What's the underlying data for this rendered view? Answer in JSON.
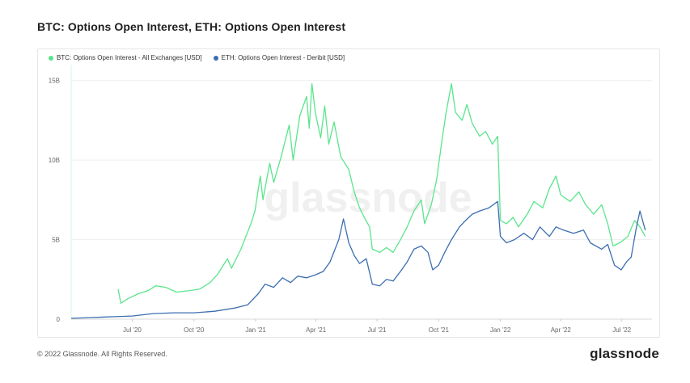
{
  "title": "BTC: Options Open Interest, ETH: Options Open Interest",
  "legend": {
    "btc": "BTC: Options Open Interest - All Exchanges [USD]",
    "eth": "ETH: Options Open Interest - Deribit [USD]"
  },
  "watermark": "glassnode",
  "footer": {
    "copyright": "© 2022 Glassnode. All Rights Reserved.",
    "brand": "glassnode"
  },
  "colors": {
    "btc": "#5ae58c",
    "eth": "#3b6eb0",
    "grid": "#eeeeee",
    "axis_text": "#666666"
  },
  "chart_data": {
    "type": "line",
    "xlim": [
      "2020-04-01",
      "2022-08-15"
    ],
    "ylim": [
      0,
      16
    ],
    "y_ticks": [
      {
        "value": 0,
        "label": "0"
      },
      {
        "value": 5,
        "label": "5B"
      },
      {
        "value": 10,
        "label": "10B"
      },
      {
        "value": 15,
        "label": "15B"
      }
    ],
    "x_ticks": [
      {
        "date": "2020-07-01",
        "label": "Jul '20"
      },
      {
        "date": "2020-10-01",
        "label": "Oct '20"
      },
      {
        "date": "2021-01-01",
        "label": "Jan '21"
      },
      {
        "date": "2021-04-01",
        "label": "Apr '21"
      },
      {
        "date": "2021-07-01",
        "label": "Jul '21"
      },
      {
        "date": "2021-10-01",
        "label": "Oct '21"
      },
      {
        "date": "2022-01-01",
        "label": "Jan '22"
      },
      {
        "date": "2022-04-01",
        "label": "Apr '22"
      },
      {
        "date": "2022-07-01",
        "label": "Jul '22"
      }
    ],
    "series": [
      {
        "name": "BTC: Options Open Interest - All Exchanges [USD]",
        "color": "#5ae58c",
        "points": [
          [
            "2020-06-10",
            1.9
          ],
          [
            "2020-06-14",
            1.0
          ],
          [
            "2020-06-25",
            1.3
          ],
          [
            "2020-07-10",
            1.6
          ],
          [
            "2020-07-25",
            1.8
          ],
          [
            "2020-08-05",
            2.1
          ],
          [
            "2020-08-20",
            2.0
          ],
          [
            "2020-09-05",
            1.7
          ],
          [
            "2020-09-25",
            1.8
          ],
          [
            "2020-10-10",
            1.9
          ],
          [
            "2020-10-25",
            2.3
          ],
          [
            "2020-11-05",
            2.8
          ],
          [
            "2020-11-20",
            3.8
          ],
          [
            "2020-11-26",
            3.2
          ],
          [
            "2020-12-10",
            4.4
          ],
          [
            "2020-12-25",
            6.0
          ],
          [
            "2020-12-31",
            6.8
          ],
          [
            "2021-01-08",
            9.0
          ],
          [
            "2021-01-12",
            7.5
          ],
          [
            "2021-01-22",
            9.8
          ],
          [
            "2021-01-28",
            8.6
          ],
          [
            "2021-02-08",
            10.2
          ],
          [
            "2021-02-20",
            12.2
          ],
          [
            "2021-02-26",
            10.0
          ],
          [
            "2021-03-08",
            12.8
          ],
          [
            "2021-03-18",
            14.0
          ],
          [
            "2021-03-22",
            12.0
          ],
          [
            "2021-03-26",
            14.8
          ],
          [
            "2021-03-31",
            13.0
          ],
          [
            "2021-04-08",
            11.4
          ],
          [
            "2021-04-14",
            13.4
          ],
          [
            "2021-04-20",
            11.0
          ],
          [
            "2021-04-28",
            12.4
          ],
          [
            "2021-05-08",
            10.2
          ],
          [
            "2021-05-20",
            9.4
          ],
          [
            "2021-05-28",
            8.0
          ],
          [
            "2021-06-05",
            7.0
          ],
          [
            "2021-06-12",
            6.4
          ],
          [
            "2021-06-20",
            5.8
          ],
          [
            "2021-06-24",
            4.4
          ],
          [
            "2021-07-05",
            4.2
          ],
          [
            "2021-07-15",
            4.5
          ],
          [
            "2021-07-25",
            4.2
          ],
          [
            "2021-08-05",
            5.0
          ],
          [
            "2021-08-15",
            5.8
          ],
          [
            "2021-08-25",
            6.8
          ],
          [
            "2021-09-05",
            7.5
          ],
          [
            "2021-09-10",
            6.0
          ],
          [
            "2021-09-20",
            7.2
          ],
          [
            "2021-09-28",
            8.8
          ],
          [
            "2021-10-05",
            11.0
          ],
          [
            "2021-10-12",
            13.0
          ],
          [
            "2021-10-20",
            14.8
          ],
          [
            "2021-10-26",
            13.0
          ],
          [
            "2021-11-05",
            12.5
          ],
          [
            "2021-11-12",
            13.5
          ],
          [
            "2021-11-20",
            12.3
          ],
          [
            "2021-12-01",
            11.5
          ],
          [
            "2021-12-10",
            11.8
          ],
          [
            "2021-12-20",
            11.0
          ],
          [
            "2021-12-28",
            11.5
          ],
          [
            "2022-01-01",
            6.2
          ],
          [
            "2022-01-10",
            6.0
          ],
          [
            "2022-01-20",
            6.4
          ],
          [
            "2022-01-28",
            5.8
          ],
          [
            "2022-02-10",
            6.6
          ],
          [
            "2022-02-20",
            7.4
          ],
          [
            "2022-03-05",
            7.0
          ],
          [
            "2022-03-15",
            8.2
          ],
          [
            "2022-03-25",
            9.0
          ],
          [
            "2022-04-01",
            7.8
          ],
          [
            "2022-04-15",
            7.4
          ],
          [
            "2022-04-28",
            8.0
          ],
          [
            "2022-05-08",
            7.2
          ],
          [
            "2022-05-20",
            6.6
          ],
          [
            "2022-06-01",
            7.2
          ],
          [
            "2022-06-10",
            6.0
          ],
          [
            "2022-06-18",
            4.6
          ],
          [
            "2022-06-28",
            4.8
          ],
          [
            "2022-07-10",
            5.2
          ],
          [
            "2022-07-20",
            6.2
          ],
          [
            "2022-07-28",
            5.8
          ],
          [
            "2022-08-05",
            5.2
          ]
        ]
      },
      {
        "name": "ETH: Options Open Interest - Deribit [USD]",
        "color": "#3b6eb0",
        "points": [
          [
            "2020-04-01",
            0.05
          ],
          [
            "2020-05-01",
            0.1
          ],
          [
            "2020-06-01",
            0.15
          ],
          [
            "2020-07-01",
            0.2
          ],
          [
            "2020-08-01",
            0.35
          ],
          [
            "2020-09-01",
            0.4
          ],
          [
            "2020-10-01",
            0.4
          ],
          [
            "2020-11-01",
            0.5
          ],
          [
            "2020-12-01",
            0.7
          ],
          [
            "2020-12-20",
            0.9
          ],
          [
            "2021-01-05",
            1.6
          ],
          [
            "2021-01-15",
            2.2
          ],
          [
            "2021-01-28",
            2.0
          ],
          [
            "2021-02-10",
            2.6
          ],
          [
            "2021-02-22",
            2.3
          ],
          [
            "2021-03-05",
            2.7
          ],
          [
            "2021-03-18",
            2.6
          ],
          [
            "2021-04-01",
            2.8
          ],
          [
            "2021-04-12",
            3.0
          ],
          [
            "2021-04-22",
            3.6
          ],
          [
            "2021-05-05",
            5.0
          ],
          [
            "2021-05-12",
            6.3
          ],
          [
            "2021-05-20",
            4.8
          ],
          [
            "2021-05-28",
            4.0
          ],
          [
            "2021-06-05",
            3.5
          ],
          [
            "2021-06-15",
            3.8
          ],
          [
            "2021-06-24",
            2.2
          ],
          [
            "2021-07-05",
            2.1
          ],
          [
            "2021-07-15",
            2.5
          ],
          [
            "2021-07-25",
            2.4
          ],
          [
            "2021-08-05",
            3.0
          ],
          [
            "2021-08-15",
            3.6
          ],
          [
            "2021-08-25",
            4.4
          ],
          [
            "2021-09-05",
            4.6
          ],
          [
            "2021-09-15",
            4.2
          ],
          [
            "2021-09-22",
            3.1
          ],
          [
            "2021-10-01",
            3.4
          ],
          [
            "2021-10-10",
            4.2
          ],
          [
            "2021-10-20",
            5.0
          ],
          [
            "2021-11-01",
            5.8
          ],
          [
            "2021-11-10",
            6.2
          ],
          [
            "2021-11-20",
            6.6
          ],
          [
            "2021-12-01",
            6.8
          ],
          [
            "2021-12-15",
            7.0
          ],
          [
            "2021-12-28",
            7.4
          ],
          [
            "2022-01-01",
            5.2
          ],
          [
            "2022-01-10",
            4.8
          ],
          [
            "2022-01-22",
            5.0
          ],
          [
            "2022-02-05",
            5.4
          ],
          [
            "2022-02-18",
            5.0
          ],
          [
            "2022-03-01",
            5.8
          ],
          [
            "2022-03-15",
            5.2
          ],
          [
            "2022-03-25",
            5.8
          ],
          [
            "2022-04-05",
            5.6
          ],
          [
            "2022-04-20",
            5.4
          ],
          [
            "2022-05-05",
            5.6
          ],
          [
            "2022-05-15",
            4.8
          ],
          [
            "2022-06-01",
            4.4
          ],
          [
            "2022-06-10",
            4.7
          ],
          [
            "2022-06-20",
            3.4
          ],
          [
            "2022-06-30",
            3.1
          ],
          [
            "2022-07-08",
            3.6
          ],
          [
            "2022-07-15",
            3.9
          ],
          [
            "2022-07-22",
            5.6
          ],
          [
            "2022-07-28",
            6.8
          ],
          [
            "2022-08-05",
            5.6
          ]
        ]
      }
    ]
  }
}
